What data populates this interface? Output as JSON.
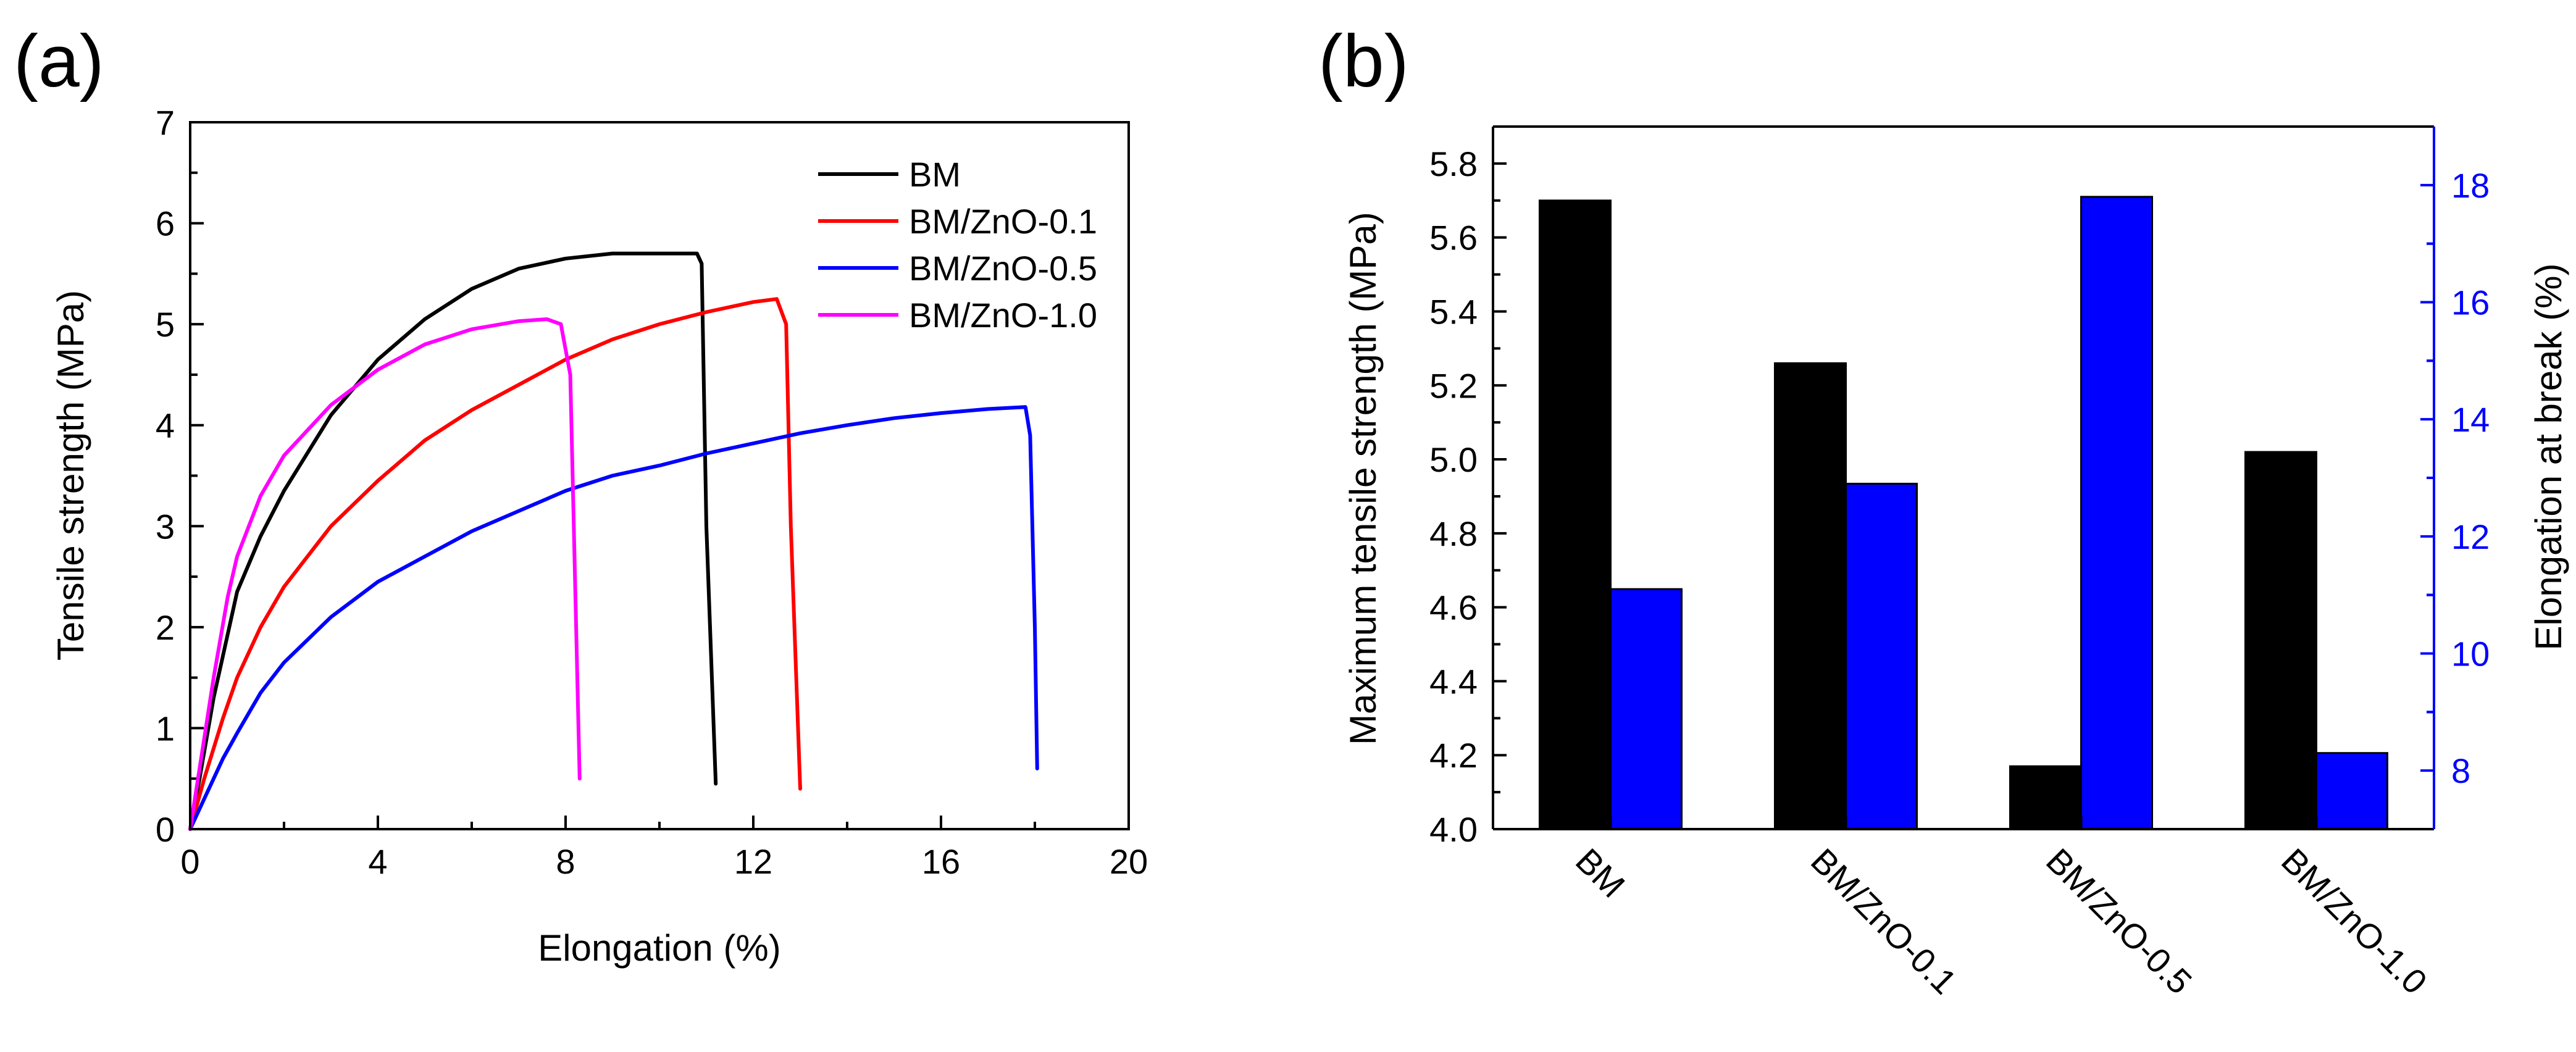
{
  "colors": {
    "bm": "#000000",
    "zno01": "#ff0000",
    "zno05": "#0000ff",
    "zno10": "#ff00ff",
    "strength_bar": "#000000",
    "elongation_bar": "#0000ff",
    "right_axis": "#0000ff"
  },
  "chart_data": [
    {
      "panel": "(a)",
      "type": "line",
      "title": "",
      "xlabel": "Elongation (%)",
      "ylabel": "Tensile strength (MPa)",
      "xlim": [
        0,
        20
      ],
      "ylim": [
        0,
        7
      ],
      "xticks": [
        0,
        4,
        8,
        12,
        16,
        20
      ],
      "yticks": [
        0,
        1,
        2,
        3,
        4,
        5,
        6,
        7
      ],
      "legend_position": "top-right",
      "series": [
        {
          "name": "BM",
          "color": "#000000",
          "points": [
            [
              0,
              0
            ],
            [
              0.2,
              0.5
            ],
            [
              0.5,
              1.3
            ],
            [
              1,
              2.35
            ],
            [
              1.5,
              2.9
            ],
            [
              2,
              3.35
            ],
            [
              3,
              4.1
            ],
            [
              4,
              4.65
            ],
            [
              5,
              5.05
            ],
            [
              6,
              5.35
            ],
            [
              7,
              5.55
            ],
            [
              8,
              5.65
            ],
            [
              9,
              5.7
            ],
            [
              10,
              5.7
            ],
            [
              10.8,
              5.7
            ],
            [
              10.9,
              5.6
            ],
            [
              11.0,
              3.0
            ],
            [
              11.2,
              0.45
            ]
          ]
        },
        {
          "name": "BM/ZnO-0.1",
          "color": "#ff0000",
          "points": [
            [
              0,
              0
            ],
            [
              0.3,
              0.5
            ],
            [
              0.7,
              1.1
            ],
            [
              1,
              1.5
            ],
            [
              1.5,
              2.0
            ],
            [
              2,
              2.4
            ],
            [
              3,
              3.0
            ],
            [
              4,
              3.45
            ],
            [
              5,
              3.85
            ],
            [
              6,
              4.15
            ],
            [
              7,
              4.4
            ],
            [
              8,
              4.65
            ],
            [
              9,
              4.85
            ],
            [
              10,
              5.0
            ],
            [
              11,
              5.12
            ],
            [
              12,
              5.22
            ],
            [
              12.5,
              5.25
            ],
            [
              12.7,
              5.0
            ],
            [
              12.8,
              3.0
            ],
            [
              13.0,
              0.4
            ]
          ]
        },
        {
          "name": "BM/ZnO-0.5",
          "color": "#0000ff",
          "points": [
            [
              0,
              0
            ],
            [
              0.3,
              0.3
            ],
            [
              0.7,
              0.7
            ],
            [
              1,
              0.95
            ],
            [
              1.5,
              1.35
            ],
            [
              2,
              1.65
            ],
            [
              3,
              2.1
            ],
            [
              4,
              2.45
            ],
            [
              5,
              2.7
            ],
            [
              6,
              2.95
            ],
            [
              7,
              3.15
            ],
            [
              8,
              3.35
            ],
            [
              9,
              3.5
            ],
            [
              10,
              3.6
            ],
            [
              11,
              3.72
            ],
            [
              12,
              3.82
            ],
            [
              13,
              3.92
            ],
            [
              14,
              4.0
            ],
            [
              15,
              4.07
            ],
            [
              16,
              4.12
            ],
            [
              17,
              4.16
            ],
            [
              17.8,
              4.18
            ],
            [
              17.9,
              3.9
            ],
            [
              18.0,
              2.0
            ],
            [
              18.05,
              0.6
            ]
          ]
        },
        {
          "name": "BM/ZnO-1.0",
          "color": "#ff00ff",
          "points": [
            [
              0,
              0
            ],
            [
              0.2,
              0.6
            ],
            [
              0.5,
              1.5
            ],
            [
              0.8,
              2.3
            ],
            [
              1,
              2.7
            ],
            [
              1.5,
              3.3
            ],
            [
              2,
              3.7
            ],
            [
              3,
              4.2
            ],
            [
              4,
              4.55
            ],
            [
              5,
              4.8
            ],
            [
              6,
              4.95
            ],
            [
              7,
              5.03
            ],
            [
              7.6,
              5.05
            ],
            [
              7.9,
              5.0
            ],
            [
              8.1,
              4.5
            ],
            [
              8.2,
              2.5
            ],
            [
              8.3,
              0.5
            ]
          ]
        }
      ]
    },
    {
      "panel": "(b)",
      "type": "bar",
      "title": "",
      "categories": [
        "BM",
        "BM/ZnO-0.1",
        "BM/ZnO-0.5",
        "BM/ZnO-1.0"
      ],
      "xlabel": "",
      "ylabel": "Maximum tensile strength (MPa)",
      "ylabel_right": "Elongation at break (%)",
      "ylim": [
        4.0,
        5.9
      ],
      "ylim_right": [
        7,
        19
      ],
      "yticks": [
        "4.0",
        "4.2",
        "4.4",
        "4.6",
        "4.8",
        "5.0",
        "5.2",
        "5.4",
        "5.6",
        "5.8"
      ],
      "yticks_right": [
        "8",
        "10",
        "12",
        "14",
        "16",
        "18"
      ],
      "series": [
        {
          "name": "Maximum tensile strength (MPa)",
          "axis": "left",
          "color": "#000000",
          "values": [
            5.7,
            5.26,
            4.17,
            5.02
          ]
        },
        {
          "name": "Elongation at break (%)",
          "axis": "right",
          "color": "#0000ff",
          "values": [
            11.1,
            12.9,
            17.8,
            8.3
          ]
        }
      ]
    }
  ]
}
